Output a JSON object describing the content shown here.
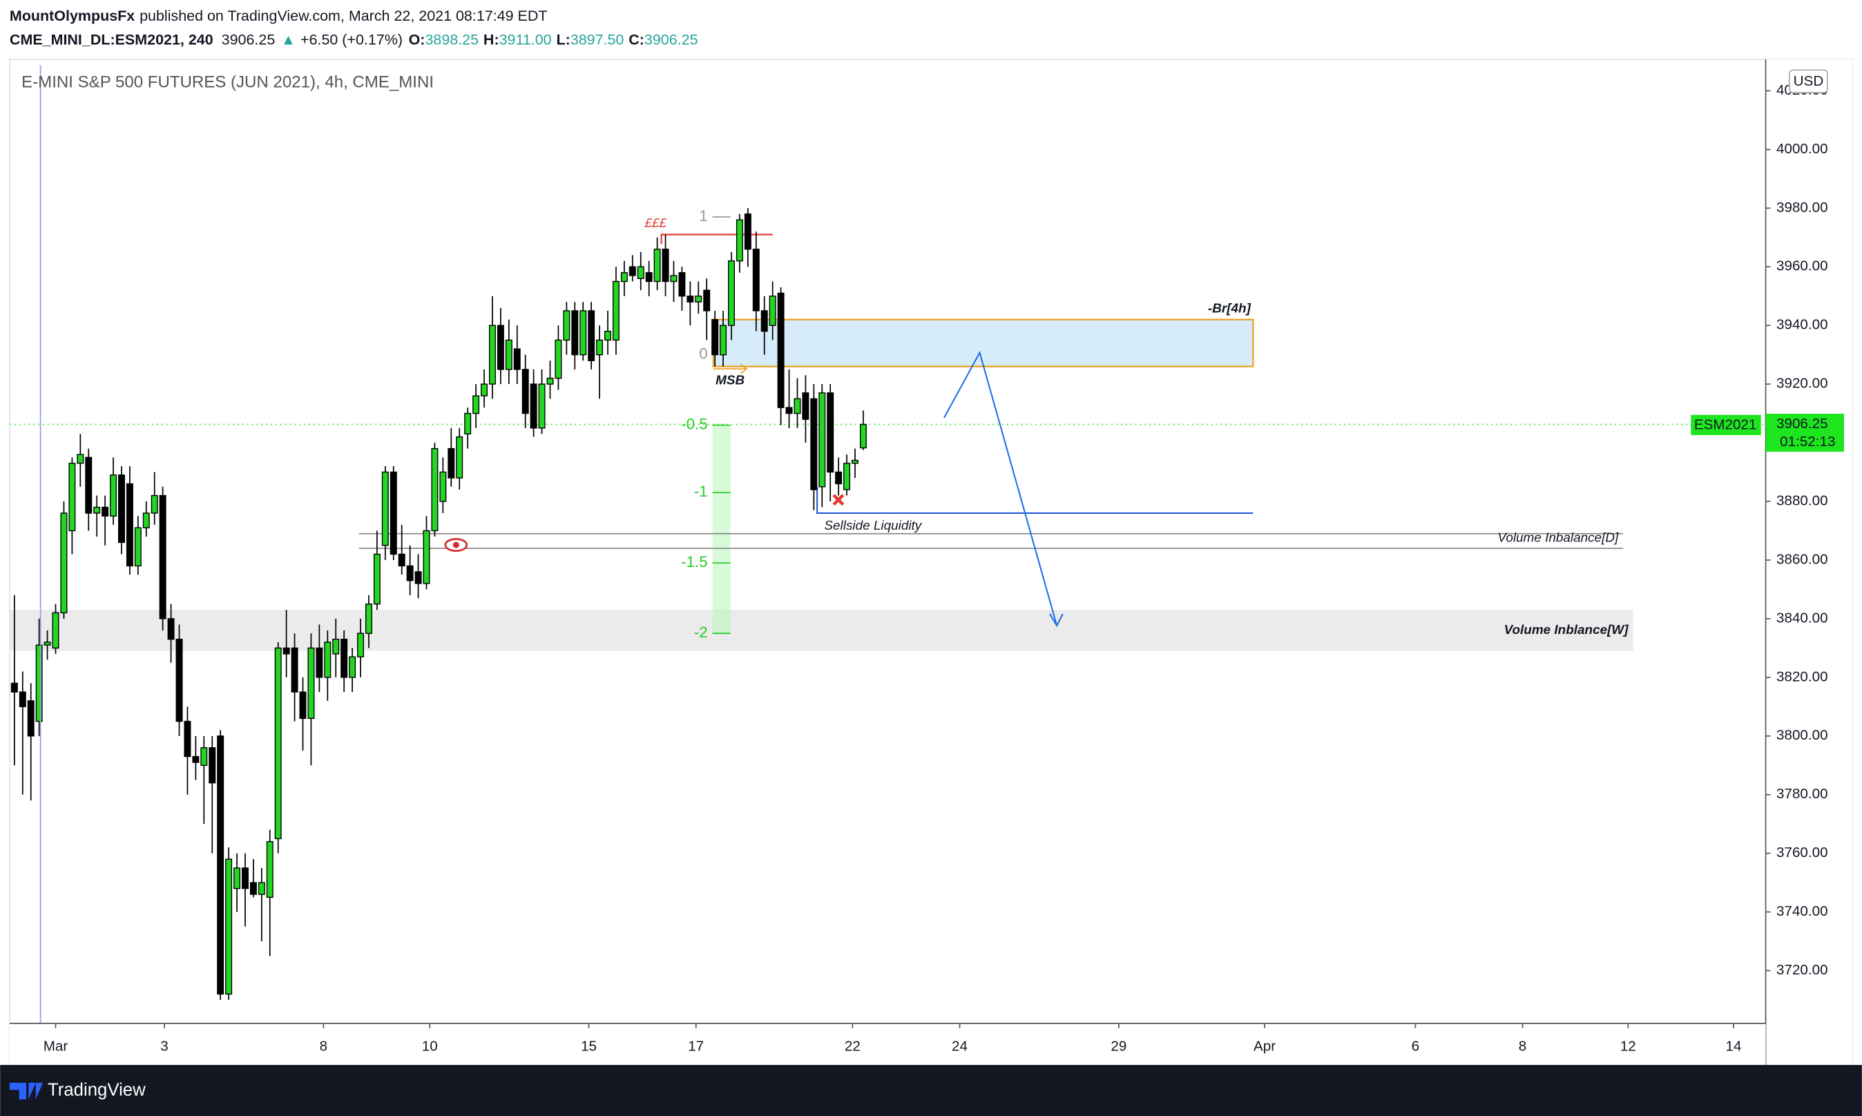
{
  "header": {
    "publisher": "MountOlympusFx",
    "published": "published on TradingView.com, March 22, 2021 08:17:49 EDT",
    "symbol": "CME_MINI_DL:ESM2021, 240",
    "price": "3906.25",
    "change_arrow": "▲",
    "change": "+6.50 (+0.17%)",
    "ohlc": [
      {
        "label": "O:",
        "value": "3898.25"
      },
      {
        "label": "H:",
        "value": "3911.00"
      },
      {
        "label": "L:",
        "value": "3897.50"
      },
      {
        "label": "C:",
        "value": "3906.25"
      }
    ],
    "currency": "USD"
  },
  "footer": {
    "brand": "TradingView"
  },
  "chart_data": {
    "type": "candlestick",
    "title": "E-MINI S&P 500 FUTURES (JUN 2021), 4h, CME_MINI",
    "colors": {
      "up": "#22d622",
      "down": "#000000",
      "outline": "#000000"
    },
    "open": [
      3818,
      3815,
      3812,
      3805,
      3831,
      3830,
      3842,
      3870,
      3893,
      3895,
      3876,
      3878,
      3875,
      3889,
      3886,
      3858,
      3871,
      3876,
      3882,
      3840,
      3833,
      3805,
      3793,
      3790,
      3796,
      3800,
      3712,
      3748,
      3755,
      3750,
      3746,
      3745,
      3765,
      3830,
      3830,
      3815,
      3806,
      3830,
      3820,
      3828,
      3833,
      3820,
      3827,
      3835,
      3845,
      3865,
      3890,
      3862,
      3858,
      3856,
      3852,
      3870,
      3880,
      3898,
      3888,
      3903,
      3910,
      3916,
      3920,
      3940,
      3925,
      3932,
      3925,
      3920,
      3905,
      3920,
      3922,
      3935,
      3945,
      3930,
      3945,
      3930,
      3935,
      3935,
      3955,
      3960,
      3956,
      3958,
      3955,
      3966,
      3955,
      3958,
      3950,
      3948,
      3952,
      3942,
      3930,
      3940,
      3962,
      3978,
      3966,
      3945,
      3940,
      3951,
      3912,
      3910,
      3917,
      3915,
      3885,
      3917,
      3890,
      3884,
      3893,
      3898.25
    ],
    "high": [
      3848,
      3822,
      3818,
      3840,
      3836,
      3845,
      3880,
      3895,
      3903,
      3898,
      3882,
      3882,
      3895,
      3892,
      3892,
      3875,
      3880,
      3890,
      3885,
      3845,
      3838,
      3810,
      3800,
      3800,
      3800,
      3802,
      3762,
      3760,
      3760,
      3758,
      3755,
      3768,
      3832,
      3843,
      3835,
      3820,
      3835,
      3838,
      3836,
      3840,
      3836,
      3830,
      3840,
      3848,
      3870,
      3892,
      3892,
      3872,
      3865,
      3862,
      3875,
      3900,
      3895,
      3905,
      3905,
      3912,
      3920,
      3925,
      3950,
      3946,
      3942,
      3940,
      3930,
      3925,
      3925,
      3928,
      3940,
      3948,
      3948,
      3948,
      3948,
      3940,
      3945,
      3960,
      3962,
      3964,
      3965,
      3962,
      3970,
      3971,
      3962,
      3960,
      3955,
      3955,
      3956,
      3945,
      3945,
      3965,
      3978,
      3980,
      3972,
      3950,
      3955,
      3953,
      3925,
      3922,
      3923,
      3920,
      3920,
      3920,
      3895,
      3896,
      3898,
      3911
    ],
    "low": [
      3790,
      3780,
      3778,
      3800,
      3826,
      3828,
      3840,
      3862,
      3885,
      3870,
      3868,
      3865,
      3872,
      3862,
      3855,
      3855,
      3868,
      3872,
      3836,
      3825,
      3800,
      3780,
      3785,
      3770,
      3760,
      3710,
      3710,
      3740,
      3735,
      3745,
      3730,
      3725,
      3760,
      3820,
      3805,
      3795,
      3790,
      3815,
      3812,
      3820,
      3815,
      3815,
      3820,
      3830,
      3843,
      3860,
      3860,
      3855,
      3848,
      3847,
      3850,
      3868,
      3876,
      3885,
      3884,
      3898,
      3905,
      3912,
      3915,
      3920,
      3920,
      3920,
      3905,
      3902,
      3903,
      3915,
      3918,
      3930,
      3925,
      3928,
      3925,
      3915,
      3930,
      3930,
      3950,
      3955,
      3952,
      3950,
      3952,
      3950,
      3948,
      3945,
      3940,
      3944,
      3935,
      3926,
      3926,
      3935,
      3958,
      3960,
      3938,
      3930,
      3935,
      3906,
      3905,
      3905,
      3900,
      3877,
      3878,
      3880,
      3882,
      3882,
      3888,
      3897.5
    ],
    "close": [
      3815,
      3810,
      3800,
      3831,
      3832,
      3842,
      3876,
      3893,
      3896,
      3876,
      3878,
      3875,
      3889,
      3866,
      3858,
      3871,
      3876,
      3882,
      3840,
      3833,
      3805,
      3793,
      3791,
      3796,
      3784,
      3712,
      3758,
      3755,
      3748,
      3746,
      3750,
      3764,
      3830,
      3828,
      3815,
      3806,
      3830,
      3820,
      3832,
      3833,
      3820,
      3827,
      3835,
      3845,
      3862,
      3890,
      3862,
      3858,
      3853,
      3852,
      3870,
      3898,
      3890,
      3888,
      3902,
      3910,
      3916,
      3920,
      3940,
      3925,
      3935,
      3925,
      3910,
      3905,
      3920,
      3922,
      3935,
      3945,
      3930,
      3945,
      3928,
      3935,
      3938,
      3955,
      3958,
      3957,
      3960,
      3955,
      3966,
      3955,
      3957,
      3950,
      3948,
      3950,
      3945,
      3930,
      3940,
      3962,
      3976,
      3966,
      3945,
      3938,
      3950,
      3912,
      3910,
      3915,
      3908,
      3884,
      3917,
      3890,
      3886,
      3893,
      3894,
      3906.25
    ],
    "xlim": [
      -0.58,
      212.5
    ],
    "xticks": [
      {
        "value": 5,
        "label": "Mar"
      },
      {
        "value": 18.2,
        "label": "3"
      },
      {
        "value": 37.5,
        "label": "8"
      },
      {
        "value": 50.4,
        "label": "10"
      },
      {
        "value": 69.7,
        "label": "15"
      },
      {
        "value": 82.7,
        "label": "17"
      },
      {
        "value": 101.7,
        "label": "22"
      },
      {
        "value": 114.7,
        "label": "24"
      },
      {
        "value": 134,
        "label": "29"
      },
      {
        "value": 151.7,
        "label": "Apr"
      },
      {
        "value": 170,
        "label": "6"
      },
      {
        "value": 183,
        "label": "8"
      },
      {
        "value": 195.8,
        "label": "12"
      },
      {
        "value": 208.6,
        "label": "14"
      }
    ],
    "ylim": [
      3702,
      4028.7
    ],
    "yticks": [
      {
        "value": 3720,
        "label": "3720.00"
      },
      {
        "value": 3740,
        "label": "3740.00"
      },
      {
        "value": 3760,
        "label": "3760.00"
      },
      {
        "value": 3780,
        "label": "3780.00"
      },
      {
        "value": 3800,
        "label": "3800.00"
      },
      {
        "value": 3820,
        "label": "3820.00"
      },
      {
        "value": 3840,
        "label": "3840.00"
      },
      {
        "value": 3860,
        "label": "3860.00"
      },
      {
        "value": 3880,
        "label": "3880.00"
      },
      {
        "value": 3900,
        "label": "3900.00"
      },
      {
        "value": 3920,
        "label": "3920.00"
      },
      {
        "value": 3940,
        "label": "3940.00"
      },
      {
        "value": 3960,
        "label": "3960.00"
      },
      {
        "value": 3980,
        "label": "3980.00"
      },
      {
        "value": 4000,
        "label": "4000.00"
      },
      {
        "value": 4020,
        "label": "4020.00"
      }
    ],
    "grid": false,
    "last_price": {
      "value": 3906.25,
      "label": "3906.25",
      "symbol": "ESM2021",
      "countdown": "01:52:13",
      "color": "#1ee61e"
    },
    "level_red": {
      "label": "£££",
      "value": 3971,
      "x": [
        78.5,
        92
      ],
      "color": "#e53935"
    },
    "fib": {
      "x": [
        84.7,
        86.9
      ],
      "levels": [
        {
          "value": 3977,
          "label": "1"
        },
        {
          "value": 3930,
          "label": "0"
        },
        {
          "value": 3906,
          "label": "-0.5"
        },
        {
          "value": 3883,
          "label": "-1"
        },
        {
          "value": 3859,
          "label": "-1.5"
        },
        {
          "value": 3835,
          "label": "-2"
        }
      ]
    },
    "zone_box": {
      "label": "-Br[4h]",
      "ylim": [
        3926,
        3942
      ],
      "x": [
        84.8,
        150.3
      ],
      "note": "MSB"
    },
    "sellside": {
      "label": "Sellside Liquidity",
      "value": 3876,
      "x": [
        97.4,
        150.3
      ]
    },
    "volume_d": {
      "label": "Volume Inbalance[D]",
      "values": [
        3869,
        3864
      ],
      "x": [
        41.8,
        195.2
      ]
    },
    "volume_w": {
      "label": "Volume Inblance[W]",
      "ylim": [
        3829,
        3843
      ],
      "x": [
        -0.58,
        196.4
      ]
    }
  }
}
